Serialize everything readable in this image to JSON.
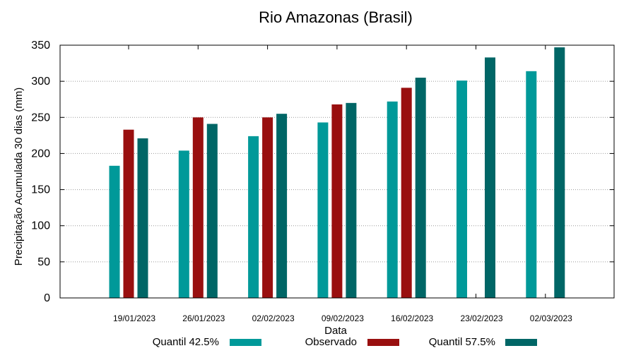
{
  "chart_data": {
    "type": "bar",
    "title": "Rio Amazonas (Brasil)",
    "xlabel": "Data",
    "ylabel": "Precipitação Acumulada 30 dias (mm)",
    "ylim": [
      0,
      350
    ],
    "yticks": [
      0,
      50,
      100,
      150,
      200,
      250,
      300,
      350
    ],
    "grid": true,
    "legend_position": "bottom",
    "categories": [
      "19/01/2023",
      "26/01/2023",
      "02/02/2023",
      "09/02/2023",
      "16/02/2023",
      "23/02/2023",
      "02/03/2023"
    ],
    "series": [
      {
        "name": "Quantil 42.5%",
        "color": "#009999",
        "values": [
          183,
          204,
          224,
          243,
          272,
          301,
          314
        ]
      },
      {
        "name": "Observado",
        "color": "#990f0f",
        "values": [
          233,
          250,
          250,
          268,
          291,
          null,
          null
        ]
      },
      {
        "name": "Quantil 57.5%",
        "color": "#006666",
        "values": [
          221,
          241,
          255,
          270,
          305,
          333,
          347
        ]
      }
    ]
  }
}
